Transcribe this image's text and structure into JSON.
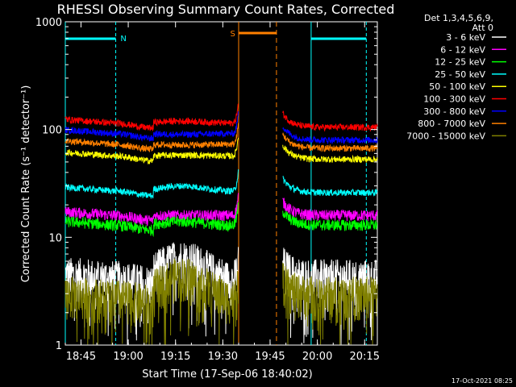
{
  "chart_data": {
    "type": "line",
    "title": "RHESSI Observing Summary Count Rates, Corrected",
    "xlabel": "Start Time (17-Sep-06 18:40:02)",
    "ylabel": "Corrected Count Rate (s⁻¹ detector⁻¹)",
    "yscale": "log",
    "ylim": [
      1,
      1000
    ],
    "xlim": [
      "18:40:02",
      "20:19:00"
    ],
    "x_minutes_since_start": [
      0,
      99
    ],
    "xticks": [
      "18:45",
      "19:00",
      "19:15",
      "19:30",
      "19:45",
      "20:00",
      "20:15"
    ],
    "yticks": [
      "1",
      "10",
      "100",
      "1000"
    ],
    "grid": false,
    "legend_header": [
      "Det 1,3,4,5,6,9,",
      "Att 0"
    ],
    "legend_position": "right",
    "series": [
      {
        "name": "3 - 6 keV",
        "color": "#ffffff",
        "level_pre": 4.2,
        "level_mid": 6.5,
        "level_post": 4.3
      },
      {
        "name": "6 - 12 keV",
        "color": "#ff00ff",
        "level_pre": 16,
        "level_mid": 16,
        "level_post": 16
      },
      {
        "name": "12 - 25 keV",
        "color": "#00ff00",
        "level_pre": 13,
        "level_mid": 14,
        "level_post": 13
      },
      {
        "name": "25 - 50 keV",
        "color": "#00ffff",
        "level_pre": 27,
        "level_mid": 30,
        "level_post": 26
      },
      {
        "name": "50 - 100 keV",
        "color": "#ffff00",
        "level_pre": 57,
        "level_mid": 58,
        "level_post": 53
      },
      {
        "name": "100 - 300 keV",
        "color": "#ff0000",
        "level_pre": 115,
        "level_mid": 120,
        "level_post": 105
      },
      {
        "name": "300 - 800 keV",
        "color": "#0000ff",
        "level_pre": 92,
        "level_mid": 90,
        "level_post": 80
      },
      {
        "name": "800 - 7000 keV",
        "color": "#ff8000",
        "level_pre": 73,
        "level_mid": 72,
        "level_post": 67
      },
      {
        "name": "7000 - 15000 keV",
        "color": "#808000",
        "level_pre": 2.8,
        "level_mid": 4.5,
        "level_post": 3.0
      }
    ],
    "annotations": {
      "night_label": "N",
      "saa_label": "S",
      "night_bars_minutes": [
        [
          0,
          16
        ],
        [
          78,
          95.5
        ]
      ],
      "saa_bar_minutes": [
        55,
        67
      ],
      "night_lines_minutes": [
        0,
        16,
        78,
        95.5
      ],
      "saa_lines_minutes": [
        55,
        67
      ],
      "data_gap_minutes": [
        55,
        69
      ]
    },
    "colors": {
      "axes": "#ffffff",
      "night": "#00ffff",
      "saa": "#ff8000",
      "background": "#000000"
    }
  },
  "footer_timestamp": "17-Oct-2021 08:25"
}
